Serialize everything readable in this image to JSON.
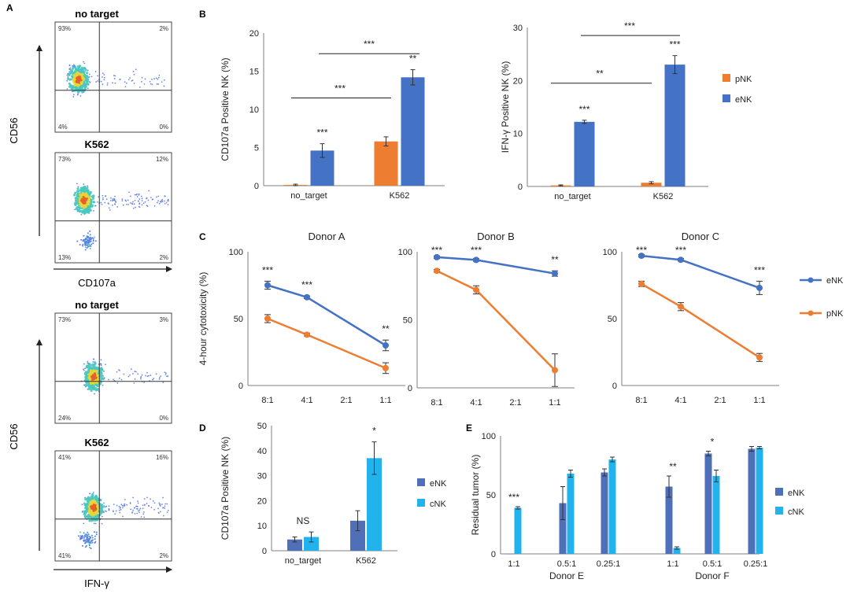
{
  "colors": {
    "pNK": "#ED7D31",
    "eNK": "#4472C4",
    "eNK_dark": "#4F6FB8",
    "cNK": "#22B2EC",
    "axis": "#7F7F7F",
    "text": "#222222",
    "flow_low": "#5B7BE6",
    "flow_mid": "#48C8C0",
    "flow_high": "#E5D63A",
    "flow_peak": "#E2622E"
  },
  "panel_letters": {
    "a": "A",
    "b": "B",
    "c": "C",
    "d": "D",
    "e": "E"
  },
  "flow": {
    "cd107a_block": {
      "y_label": "CD56",
      "x_label": "CD107a",
      "plots": [
        {
          "title": "no target",
          "quadrants": {
            "ul": "93%",
            "ur": "2%",
            "ll": "4%",
            "lr": "0%"
          }
        },
        {
          "title": "K562",
          "quadrants": {
            "ul": "73%",
            "ur": "12%",
            "ll": "13%",
            "lr": "2%"
          }
        }
      ]
    },
    "ifng_block": {
      "y_label": "CD56",
      "x_label": "IFN-γ",
      "plots": [
        {
          "title": "no target",
          "quadrants": {
            "ul": "73%",
            "ur": "3%",
            "ll": "24%",
            "lr": "0%"
          }
        },
        {
          "title": "K562",
          "quadrants": {
            "ul": "41%",
            "ur": "16%",
            "ll": "41%",
            "lr": "2%"
          }
        }
      ]
    }
  },
  "chart_data": [
    {
      "id": "B1",
      "type": "bar",
      "categories": [
        "no_target",
        "K562"
      ],
      "series": [
        {
          "name": "pNK",
          "values": [
            0.1,
            5.8
          ],
          "errors": [
            0.1,
            0.6
          ]
        },
        {
          "name": "eNK",
          "values": [
            4.6,
            14.2
          ],
          "errors": [
            0.9,
            1.0
          ]
        }
      ],
      "ylabel": "CD107a Positive NK (%)",
      "ylim": [
        0,
        20
      ],
      "yticks": [
        "0",
        "5",
        "10",
        "15",
        "20"
      ],
      "annotations": [
        "***",
        "**"
      ],
      "brackets": [
        "***",
        "***"
      ]
    },
    {
      "id": "B2",
      "type": "bar",
      "categories": [
        "no_target",
        "K562"
      ],
      "series": [
        {
          "name": "pNK",
          "values": [
            0.2,
            0.7
          ],
          "errors": [
            0.1,
            0.2
          ]
        },
        {
          "name": "eNK",
          "values": [
            12.2,
            23.0
          ],
          "errors": [
            0.3,
            1.7
          ]
        }
      ],
      "ylabel": "IFN-γ Positive NK (%)",
      "ylim": [
        0,
        30
      ],
      "yticks": [
        "0",
        "10",
        "20",
        "30"
      ],
      "annotations": [
        "***",
        "***"
      ],
      "brackets": [
        "**",
        "***"
      ],
      "legend": [
        "pNK",
        "eNK"
      ]
    },
    {
      "id": "C",
      "type": "line",
      "x": [
        "8:1",
        "4:1",
        "2:1",
        "1:1"
      ],
      "ylabel": "4-hour cytotoxicity (%)",
      "ylim": [
        0,
        100
      ],
      "yticks": [
        "0",
        "50",
        "100"
      ],
      "legend": [
        "eNK",
        "pNK"
      ],
      "panels": [
        {
          "title": "Donor A",
          "eNK": [
            75,
            66,
            null,
            30
          ],
          "eNK_err": [
            3,
            1,
            null,
            4
          ],
          "pNK": [
            50,
            38,
            null,
            13
          ],
          "pNK_err": [
            3,
            1,
            null,
            4
          ],
          "sig": [
            "***",
            "***",
            "",
            "**"
          ]
        },
        {
          "title": "Donor B",
          "eNK": [
            96,
            94,
            null,
            84
          ],
          "eNK_err": [
            1,
            1,
            null,
            2
          ],
          "pNK": [
            86,
            72,
            null,
            13
          ],
          "pNK_err": [
            1,
            3,
            null,
            12
          ],
          "sig": [
            "***",
            "***",
            "",
            "**"
          ]
        },
        {
          "title": "Donor C",
          "eNK": [
            97,
            94,
            null,
            73
          ],
          "eNK_err": [
            1,
            1,
            null,
            5
          ],
          "pNK": [
            76,
            59,
            null,
            21
          ],
          "pNK_err": [
            2,
            3,
            null,
            3
          ],
          "sig": [
            "***",
            "***",
            "",
            "***"
          ]
        }
      ]
    },
    {
      "id": "D",
      "type": "bar",
      "categories": [
        "no_target",
        "K562"
      ],
      "series": [
        {
          "name": "eNK",
          "values": [
            4.5,
            12.0
          ],
          "errors": [
            1.0,
            4.0
          ]
        },
        {
          "name": "cNK",
          "values": [
            5.5,
            37.0
          ],
          "errors": [
            2.0,
            6.5
          ]
        }
      ],
      "ylabel": "CD107a Positive NK (%)",
      "ylim": [
        0,
        50
      ],
      "yticks": [
        "0",
        "10",
        "20",
        "30",
        "40",
        "50"
      ],
      "annotations": [
        "NS",
        "*"
      ],
      "legend": [
        "eNK",
        "cNK"
      ]
    },
    {
      "id": "E",
      "type": "bar",
      "groups": [
        "Donor E",
        "Donor F"
      ],
      "categories": [
        "1:1",
        "0.5:1",
        "0.25:1",
        "1:1",
        "0.5:1",
        "0.25:1"
      ],
      "series": [
        {
          "name": "eNK",
          "values": [
            0,
            43,
            69,
            57,
            85,
            89
          ],
          "errors": [
            0,
            14,
            3,
            9,
            2,
            2
          ]
        },
        {
          "name": "cNK",
          "values": [
            39,
            68,
            80,
            5,
            66,
            90
          ],
          "errors": [
            1,
            3,
            2,
            1,
            5,
            1
          ]
        }
      ],
      "ylabel": "Residual tumor (%)",
      "ylim": [
        0,
        100
      ],
      "yticks": [
        "0",
        "50",
        "100"
      ],
      "annotations": [
        "***",
        "",
        "",
        "**",
        "*",
        ""
      ],
      "legend": [
        "eNK",
        "cNK"
      ]
    }
  ]
}
